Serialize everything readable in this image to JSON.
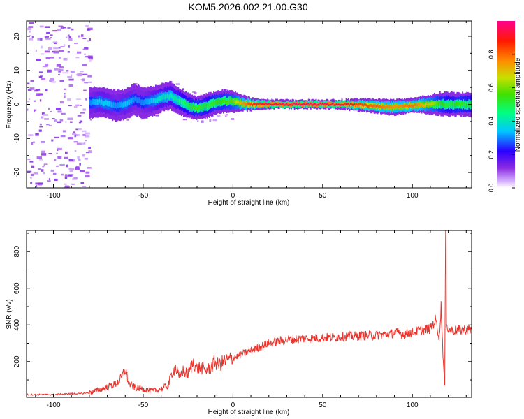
{
  "title": "KOM5.2026.002.21.00.G30",
  "chart_data": [
    {
      "type": "heatmap",
      "xlabel": "Height of straight line (km)",
      "ylabel": "Frequency (Hz)",
      "xlim": [
        -115,
        133
      ],
      "ylim": [
        -24.5,
        24.5
      ],
      "x_ticks": [
        "-100",
        "-50",
        "0",
        "50",
        "100"
      ],
      "x_tick_values": [
        -100,
        -50,
        0,
        50,
        100
      ],
      "y_ticks": [
        "-20",
        "-10",
        "0",
        "10",
        "20"
      ],
      "y_tick_values": [
        -20,
        -10,
        0,
        10,
        20
      ],
      "colorbar": {
        "label": "Normalized spectral amplitude",
        "range": [
          0,
          1
        ],
        "ticks": [
          "0.0",
          "0.2",
          "0.4",
          "0.6",
          "0.8"
        ],
        "tick_values": [
          0,
          0.2,
          0.4,
          0.6,
          0.8
        ]
      },
      "ridge": {
        "x": [
          -80,
          -75,
          -70,
          -65,
          -60,
          -55,
          -50,
          -45,
          -40,
          -35,
          -30,
          -25,
          -20,
          -15,
          -10,
          -5,
          0,
          5,
          10,
          20,
          30,
          40,
          50,
          60,
          70,
          80,
          90,
          100,
          110,
          115,
          120,
          125,
          133
        ],
        "frequency": [
          0.5,
          0.8,
          0.2,
          -0.5,
          0.2,
          1.5,
          0.5,
          1.0,
          2.0,
          2.5,
          1.0,
          -0.5,
          -1.0,
          -0.5,
          0.5,
          1.0,
          0.8,
          0.3,
          0.0,
          0.0,
          0.0,
          0.0,
          0.0,
          0.0,
          -0.2,
          -0.5,
          -0.8,
          -0.3,
          0.0,
          0.2,
          0.0,
          0.0,
          0.0
        ],
        "amplitude": [
          0.3,
          0.35,
          0.35,
          0.3,
          0.35,
          0.3,
          0.3,
          0.35,
          0.4,
          0.4,
          0.45,
          0.5,
          0.55,
          0.5,
          0.55,
          0.55,
          0.6,
          0.75,
          0.85,
          0.95,
          0.97,
          0.98,
          0.97,
          0.95,
          0.85,
          0.8,
          0.75,
          0.8,
          0.65,
          0.55,
          0.5,
          0.55,
          0.5
        ]
      }
    },
    {
      "type": "line",
      "xlabel": "Height of straight line (km)",
      "ylabel": "SNR (v/v)",
      "xlim": [
        -115,
        133
      ],
      "ylim": [
        5,
        915
      ],
      "x_ticks": [
        "-100",
        "-50",
        "0",
        "50",
        "100"
      ],
      "x_tick_values": [
        -100,
        -50,
        0,
        50,
        100
      ],
      "y_ticks": [
        "200",
        "400",
        "600",
        "800"
      ],
      "y_tick_values": [
        200,
        400,
        600,
        800
      ],
      "series": [
        {
          "color": "#e8342c",
          "x": [
            -115,
            -100,
            -90,
            -85,
            -80,
            -75,
            -70,
            -65,
            -62,
            -60,
            -58,
            -55,
            -50,
            -45,
            -40,
            -36,
            -34,
            -32,
            -30,
            -28,
            -25,
            -22,
            -20,
            -18,
            -15,
            -12,
            -10,
            -8,
            -5,
            -2,
            0,
            3,
            5,
            10,
            15,
            20,
            25,
            30,
            40,
            50,
            60,
            70,
            80,
            88,
            90,
            95,
            100,
            105,
            110,
            113,
            115,
            116,
            117,
            117.5,
            118,
            118.5,
            119,
            120,
            122,
            125,
            130,
            133
          ],
          "y": [
            20,
            20,
            25,
            25,
            30,
            45,
            60,
            80,
            110,
            160,
            80,
            60,
            50,
            40,
            50,
            70,
            140,
            170,
            110,
            150,
            130,
            200,
            160,
            170,
            150,
            170,
            200,
            180,
            200,
            210,
            220,
            230,
            240,
            260,
            280,
            300,
            310,
            320,
            325,
            330,
            335,
            340,
            345,
            350,
            360,
            350,
            360,
            370,
            380,
            430,
            330,
            500,
            250,
            150,
            60,
            900,
            430,
            370,
            370,
            370,
            375,
            375
          ]
        }
      ]
    }
  ]
}
